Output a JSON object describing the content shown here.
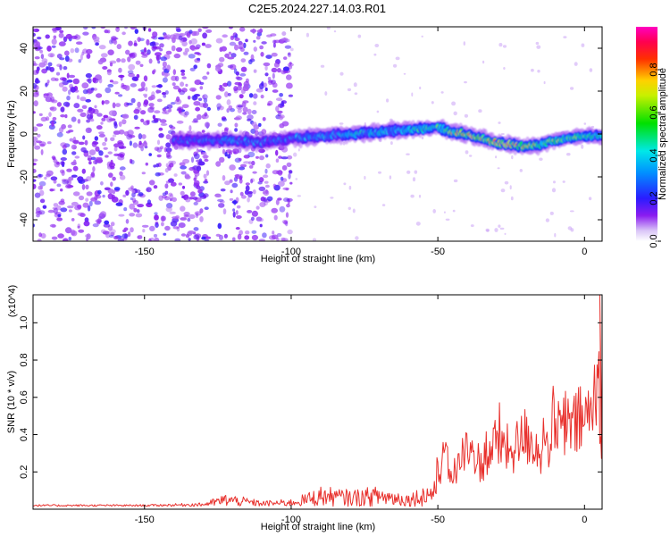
{
  "title": "C2E5.2024.227.14.03.R01",
  "chart_data": [
    {
      "type": "heatmap",
      "name": "spectrogram",
      "xlabel": "Height of straight line (km)",
      "ylabel": "Frequency (Hz)",
      "xlim": [
        -188,
        6
      ],
      "ylim": [
        -50,
        50
      ],
      "xticks": [
        -150,
        -100,
        -50,
        0
      ],
      "yticks": [
        -40,
        -20,
        0,
        20,
        40
      ],
      "colorbar": {
        "label": "Normalized spectral amplitude",
        "range": [
          0,
          1
        ],
        "ticks": [
          0.0,
          0.2,
          0.4,
          0.6,
          0.8
        ],
        "colormap": "rainbow (violet→blue→cyan→green→yellow→red→magenta)"
      },
      "ridge": {
        "x": [
          -135,
          -120,
          -110,
          -100,
          -90,
          -80,
          -70,
          -60,
          -50,
          -45,
          -40,
          -35,
          -30,
          -25,
          -20,
          -15,
          -10,
          -5,
          0,
          5
        ],
        "frequency": [
          -3,
          -3,
          -4,
          -2,
          -1,
          0,
          1,
          2,
          3,
          1,
          0,
          -2,
          -4,
          -5,
          -6,
          -5,
          -3,
          -2,
          -1,
          -1
        ],
        "amplitude": [
          0.35,
          0.4,
          0.35,
          0.4,
          0.45,
          0.5,
          0.5,
          0.55,
          0.6,
          0.75,
          0.85,
          0.8,
          0.9,
          0.85,
          0.8,
          0.75,
          0.7,
          0.6,
          0.65,
          0.55
        ]
      },
      "noise_regions": [
        [
          -188,
          -128
        ],
        [
          -125,
          -100
        ]
      ]
    },
    {
      "type": "line",
      "name": "snr",
      "xlabel": "Height of straight line (km)",
      "ylabel": "SNR (10 * v/v)",
      "yscale_note": "(x10^4)",
      "xlim": [
        -188,
        6
      ],
      "ylim": [
        0,
        1.15
      ],
      "xticks": [
        -150,
        -100,
        -50,
        0
      ],
      "yticks": [
        0.2,
        0.4,
        0.6,
        0.8,
        1.0
      ],
      "color": "#e8302c",
      "envelope": {
        "x": [
          -188,
          -150,
          -130,
          -122,
          -110,
          -100,
          -95,
          -90,
          -80,
          -70,
          -60,
          -52,
          -48,
          -45,
          -40,
          -35,
          -30,
          -25,
          -20,
          -15,
          -10,
          -5,
          0,
          3,
          5,
          6
        ],
        "y": [
          0.02,
          0.02,
          0.03,
          0.08,
          0.04,
          0.05,
          0.08,
          0.12,
          0.1,
          0.12,
          0.08,
          0.15,
          0.45,
          0.3,
          0.5,
          0.4,
          0.6,
          0.5,
          0.65,
          0.5,
          0.7,
          0.7,
          0.8,
          0.85,
          1.15,
          0.3
        ]
      }
    }
  ]
}
